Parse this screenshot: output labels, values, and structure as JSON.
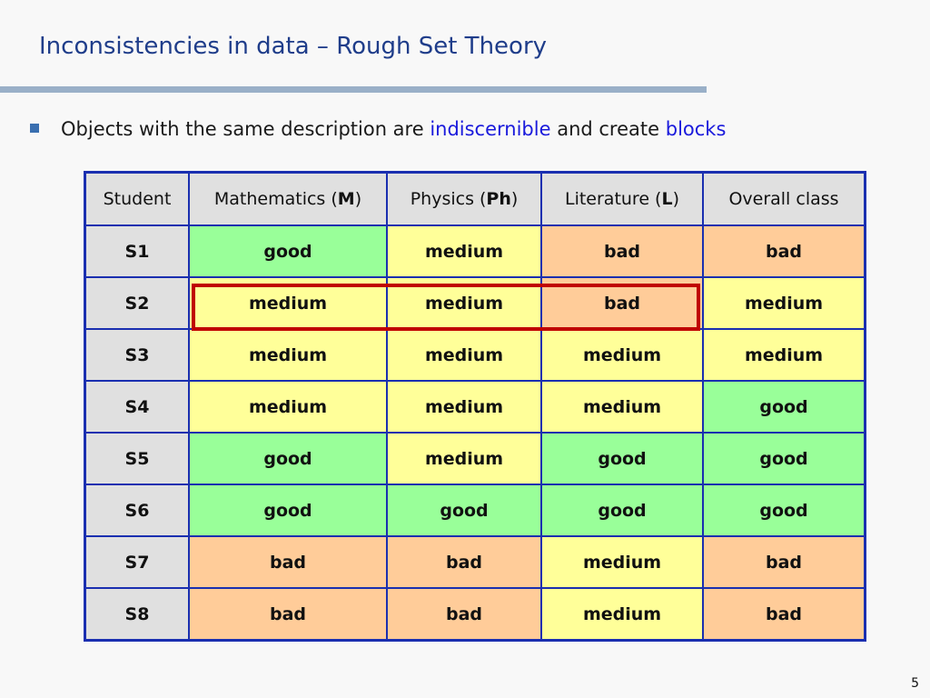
{
  "title": "Inconsistencies in data – Rough Set Theory",
  "bullet": {
    "text_before": "Objects with the same description are ",
    "highlight1": "indiscernible",
    "text_middle": " and create ",
    "highlight2": "blocks"
  },
  "table": {
    "headers": {
      "student": "Student",
      "math_prefix": "Mathematics (",
      "math_abbr": "M",
      "physics_prefix": "Physics (",
      "physics_abbr": "Ph",
      "literature_prefix": "Literature (",
      "literature_abbr": "L",
      "close_paren": ")",
      "overall": "Overall class"
    },
    "rows": [
      [
        "S1",
        "good",
        "medium",
        "bad",
        "bad"
      ],
      [
        "S2",
        "medium",
        "medium",
        "bad",
        "medium"
      ],
      [
        "S3",
        "medium",
        "medium",
        "medium",
        "medium"
      ],
      [
        "S4",
        "medium",
        "medium",
        "medium",
        "good"
      ],
      [
        "S5",
        "good",
        "medium",
        "good",
        "good"
      ],
      [
        "S6",
        "good",
        "good",
        "good",
        "good"
      ],
      [
        "S7",
        "bad",
        "bad",
        "medium",
        "bad"
      ],
      [
        "S8",
        "bad",
        "bad",
        "medium",
        "bad"
      ]
    ]
  },
  "colors": {
    "good": "#99ff99",
    "medium": "#ffff99",
    "bad": "#ffcc99",
    "header": "#e0e0e0",
    "border": "#1a2fb0",
    "block_highlight": "#c00000"
  },
  "page_number": "5"
}
